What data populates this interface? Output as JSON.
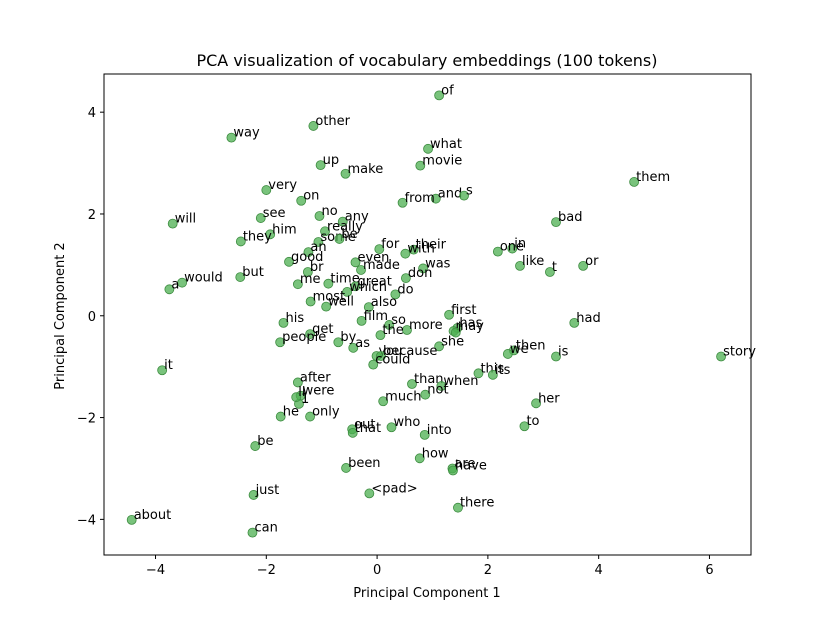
{
  "chart_data": {
    "type": "scatter",
    "title": "PCA visualization of vocabulary embeddings (100 tokens)",
    "xlabel": "Principal Component 1",
    "ylabel": "Principal Component 2",
    "xlim": [
      -4.93,
      6.75
    ],
    "ylim": [
      -4.7,
      4.75
    ],
    "xticks": [
      -4,
      -2,
      0,
      2,
      4,
      6
    ],
    "yticks": [
      -4,
      -2,
      0,
      2,
      4
    ],
    "marker_color": "#4caf50",
    "grid": false,
    "points": [
      {
        "label": "of",
        "x": 1.12,
        "y": 4.33
      },
      {
        "label": "other",
        "x": -1.15,
        "y": 3.73
      },
      {
        "label": "way",
        "x": -2.63,
        "y": 3.5
      },
      {
        "label": "what",
        "x": 0.92,
        "y": 3.28
      },
      {
        "label": "up",
        "x": -1.02,
        "y": 2.96
      },
      {
        "label": "movie",
        "x": 0.78,
        "y": 2.95
      },
      {
        "label": "make",
        "x": -0.57,
        "y": 2.79
      },
      {
        "label": "them",
        "x": 4.64,
        "y": 2.63
      },
      {
        "label": "very",
        "x": -2.0,
        "y": 2.47
      },
      {
        "label": "on",
        "x": -1.37,
        "y": 2.26
      },
      {
        "label": "and",
        "x": 1.06,
        "y": 2.3
      },
      {
        "label": "s",
        "x": 1.57,
        "y": 2.36
      },
      {
        "label": "from",
        "x": 0.46,
        "y": 2.22
      },
      {
        "label": "no",
        "x": -1.04,
        "y": 1.96
      },
      {
        "label": "see",
        "x": -2.1,
        "y": 1.92
      },
      {
        "label": "any",
        "x": -0.62,
        "y": 1.85
      },
      {
        "label": "bad",
        "x": 3.23,
        "y": 1.84
      },
      {
        "label": "will",
        "x": -3.69,
        "y": 1.81
      },
      {
        "label": "really",
        "x": -0.94,
        "y": 1.66
      },
      {
        "label": "him",
        "x": -1.93,
        "y": 1.6
      },
      {
        "label": "they",
        "x": -2.46,
        "y": 1.46
      },
      {
        "label": "some",
        "x": -1.06,
        "y": 1.45
      },
      {
        "label": "be",
        "x": -0.68,
        "y": 1.51
      },
      {
        "label": "for",
        "x": 0.04,
        "y": 1.31
      },
      {
        "label": "their",
        "x": 0.66,
        "y": 1.3
      },
      {
        "label": "with",
        "x": 0.51,
        "y": 1.22
      },
      {
        "label": "in",
        "x": 2.44,
        "y": 1.32
      },
      {
        "label": "one",
        "x": 2.18,
        "y": 1.26
      },
      {
        "label": "an",
        "x": -1.24,
        "y": 1.25
      },
      {
        "label": "good",
        "x": -1.59,
        "y": 1.06
      },
      {
        "label": "even",
        "x": -0.39,
        "y": 1.05
      },
      {
        "label": "or",
        "x": 3.72,
        "y": 0.98
      },
      {
        "label": "like",
        "x": 2.58,
        "y": 0.98
      },
      {
        "label": "was",
        "x": 0.83,
        "y": 0.93
      },
      {
        "label": "made",
        "x": -0.29,
        "y": 0.9
      },
      {
        "label": "br",
        "x": -1.25,
        "y": 0.86
      },
      {
        "label": "t",
        "x": 3.12,
        "y": 0.86
      },
      {
        "label": "but",
        "x": -2.47,
        "y": 0.76
      },
      {
        "label": "don",
        "x": 0.52,
        "y": 0.74
      },
      {
        "label": "would",
        "x": -3.52,
        "y": 0.65
      },
      {
        "label": "me",
        "x": -1.43,
        "y": 0.62
      },
      {
        "label": "time",
        "x": -0.88,
        "y": 0.63
      },
      {
        "label": "great",
        "x": -0.39,
        "y": 0.58
      },
      {
        "label": "a",
        "x": -3.75,
        "y": 0.52
      },
      {
        "label": "which",
        "x": -0.54,
        "y": 0.47
      },
      {
        "label": "do",
        "x": 0.33,
        "y": 0.42
      },
      {
        "label": "most",
        "x": -1.2,
        "y": 0.28
      },
      {
        "label": "well",
        "x": -0.92,
        "y": 0.18
      },
      {
        "label": "also",
        "x": -0.15,
        "y": 0.17
      },
      {
        "label": "first",
        "x": 1.3,
        "y": 0.02
      },
      {
        "label": "film",
        "x": -0.28,
        "y": -0.1
      },
      {
        "label": "his",
        "x": -1.69,
        "y": -0.14
      },
      {
        "label": "had",
        "x": 3.56,
        "y": -0.14
      },
      {
        "label": "so",
        "x": 0.22,
        "y": -0.18
      },
      {
        "label": "has",
        "x": 1.45,
        "y": -0.24
      },
      {
        "label": "more",
        "x": 0.54,
        "y": -0.28
      },
      {
        "label": "may",
        "x": 1.38,
        "y": -0.3
      },
      {
        "label": "get",
        "x": -1.21,
        "y": -0.36
      },
      {
        "label": "the",
        "x": 0.06,
        "y": -0.38
      },
      {
        "label": "people",
        "x": -1.75,
        "y": -0.52
      },
      {
        "label": "by",
        "x": -0.7,
        "y": -0.52
      },
      {
        "label": "as",
        "x": -0.43,
        "y": -0.63
      },
      {
        "label": "she",
        "x": 1.12,
        "y": -0.6
      },
      {
        "label": "then",
        "x": 2.47,
        "y": -0.68
      },
      {
        "label": "we",
        "x": 2.36,
        "y": -0.75
      },
      {
        "label": "you",
        "x": -0.01,
        "y": -0.79
      },
      {
        "label": "because",
        "x": 0.07,
        "y": -0.79
      },
      {
        "label": "is",
        "x": 3.23,
        "y": -0.8
      },
      {
        "label": "story",
        "x": 6.21,
        "y": -0.8
      },
      {
        "label": "could",
        "x": -0.07,
        "y": -0.96
      },
      {
        "label": "it",
        "x": -3.88,
        "y": -1.07
      },
      {
        "label": "this",
        "x": 1.83,
        "y": -1.13
      },
      {
        "label": "its",
        "x": 2.09,
        "y": -1.16
      },
      {
        "label": "after",
        "x": -1.43,
        "y": -1.31
      },
      {
        "label": "than",
        "x": 0.63,
        "y": -1.34
      },
      {
        "label": "when",
        "x": 1.16,
        "y": -1.38
      },
      {
        "label": "not",
        "x": 0.87,
        "y": -1.55
      },
      {
        "label": "were",
        "x": -1.38,
        "y": -1.57
      },
      {
        "label": "much",
        "x": 0.11,
        "y": -1.68
      },
      {
        "label": "her",
        "x": 2.87,
        "y": -1.72
      },
      {
        "label": "he",
        "x": -1.74,
        "y": -1.98
      },
      {
        "label": "only",
        "x": -1.21,
        "y": -1.98
      },
      {
        "label": "to",
        "x": 2.66,
        "y": -2.17
      },
      {
        "label": "out",
        "x": -0.45,
        "y": -2.23
      },
      {
        "label": "who",
        "x": 0.26,
        "y": -2.19
      },
      {
        "label": "that",
        "x": -0.44,
        "y": -2.3
      },
      {
        "label": "into",
        "x": 0.86,
        "y": -2.34
      },
      {
        "label": "be",
        "x": -2.2,
        "y": -2.56
      },
      {
        "label": "how",
        "x": 0.77,
        "y": -2.8
      },
      {
        "label": "been",
        "x": -0.56,
        "y": -2.99
      },
      {
        "label": "are",
        "x": 1.36,
        "y": -3.0
      },
      {
        "label": "have",
        "x": 1.37,
        "y": -3.04
      },
      {
        "label": "just",
        "x": -2.23,
        "y": -3.52
      },
      {
        "label": "<pad>",
        "x": -0.14,
        "y": -3.49
      },
      {
        "label": "there",
        "x": 1.46,
        "y": -3.77
      },
      {
        "label": "about",
        "x": -4.43,
        "y": -4.01
      },
      {
        "label": "can",
        "x": -2.25,
        "y": -4.26
      },
      {
        "label": "1",
        "x": -1.41,
        "y": -1.73
      },
      {
        "label": "ll",
        "x": -1.46,
        "y": -1.6
      },
      {
        "label": "i",
        "x": 1.42,
        "y": -0.33
      }
    ]
  }
}
